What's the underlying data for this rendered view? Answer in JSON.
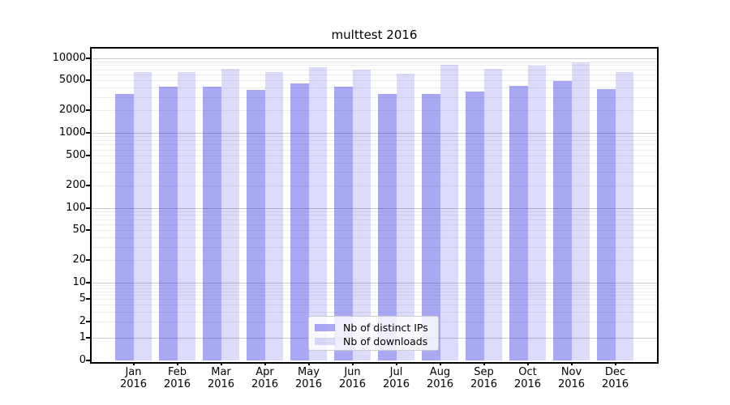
{
  "title": "multtest 2016",
  "legend": {
    "items": [
      {
        "label": "Nb of distinct IPs"
      },
      {
        "label": "Nb of downloads"
      }
    ],
    "position": "lower center"
  },
  "colors": {
    "bar_ips_hex": "#a9a9f3",
    "bar_downloads_hex": "#dcdcfa",
    "bar_ips_rgba": "rgba(50,50,226,0.42)",
    "bar_downloads_rgba": "rgba(50,50,226,0.17)",
    "grid_major": "#c9c9c9",
    "grid_minor": "#ececec",
    "spine": "#000000",
    "text": "#000000",
    "legend_border": "#cccccc"
  },
  "chart_data": {
    "type": "bar",
    "title": "multtest 2016",
    "categories": [
      "Jan 2016",
      "Feb 2016",
      "Mar 2016",
      "Apr 2016",
      "May 2016",
      "Jun 2016",
      "Jul 2016",
      "Aug 2016",
      "Sep 2016",
      "Oct 2016",
      "Nov 2016",
      "Dec 2016"
    ],
    "month_labels": [
      "Jan",
      "Feb",
      "Mar",
      "Apr",
      "May",
      "Jun",
      "Jul",
      "Aug",
      "Sep",
      "Oct",
      "Nov",
      "Dec"
    ],
    "year_label": "2016",
    "series": [
      {
        "name": "Nb of distinct IPs",
        "values": [
          3300,
          4100,
          4100,
          3700,
          4600,
          4100,
          3300,
          3300,
          3600,
          4200,
          4900,
          3800
        ]
      },
      {
        "name": "Nb of downloads",
        "values": [
          6500,
          6500,
          7200,
          6400,
          7600,
          6900,
          6200,
          8100,
          7200,
          7800,
          8800,
          6500
        ]
      }
    ],
    "xlabel": "",
    "ylabel": "",
    "yscale": "symlog",
    "y_tick_values": [
      0,
      1,
      2,
      5,
      10,
      20,
      50,
      100,
      200,
      500,
      1000,
      2000,
      5000,
      10000
    ],
    "y_tick_labels": [
      "0",
      "1",
      "2",
      "5",
      "10",
      "20",
      "50",
      "100",
      "200",
      "500",
      "1000",
      "2000",
      "5000",
      "10000"
    ],
    "ylim": [
      0,
      13000
    ],
    "grid": true,
    "legend_position": "lower center"
  }
}
